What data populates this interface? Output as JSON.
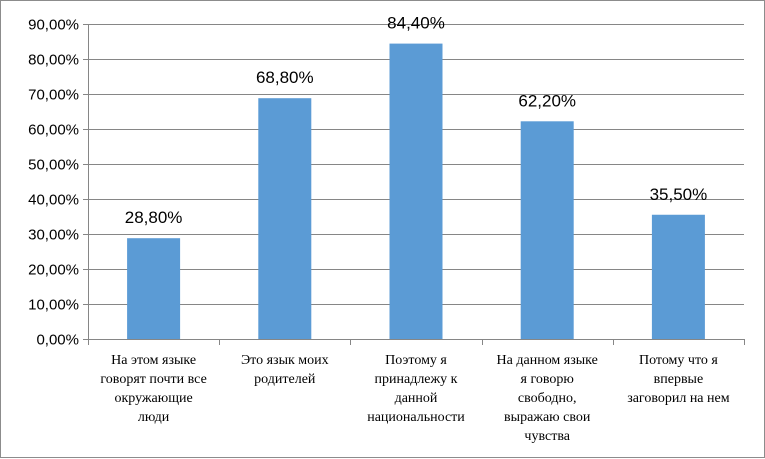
{
  "chart_data": {
    "type": "bar",
    "categories": [
      [
        "На этом языке",
        "говорят почти все",
        "окружающие",
        "люди"
      ],
      [
        "Это язык моих",
        "родителей"
      ],
      [
        "Поэтому я",
        "принадлежу к",
        "данной",
        "национальности"
      ],
      [
        "На данном языке",
        "я говорю",
        "свободно,",
        "выражаю свои",
        "чувства"
      ],
      [
        "Потому что я",
        "впервые",
        "заговорил на нем"
      ]
    ],
    "values": [
      28.8,
      68.8,
      84.4,
      62.2,
      35.5
    ],
    "value_labels": [
      "28,80%",
      "68,80%",
      "84,40%",
      "62,20%",
      "35,50%"
    ],
    "ylim": [
      0,
      90
    ],
    "yticks": [
      0,
      10,
      20,
      30,
      40,
      50,
      60,
      70,
      80,
      90
    ],
    "ytick_labels": [
      "0,00%",
      "10,00%",
      "20,00%",
      "30,00%",
      "40,00%",
      "50,00%",
      "60,00%",
      "70,00%",
      "80,00%",
      "90,00%"
    ],
    "bar_color": "#5b9bd5",
    "grid": true,
    "legend": false,
    "title": "",
    "xlabel": "",
    "ylabel": ""
  }
}
